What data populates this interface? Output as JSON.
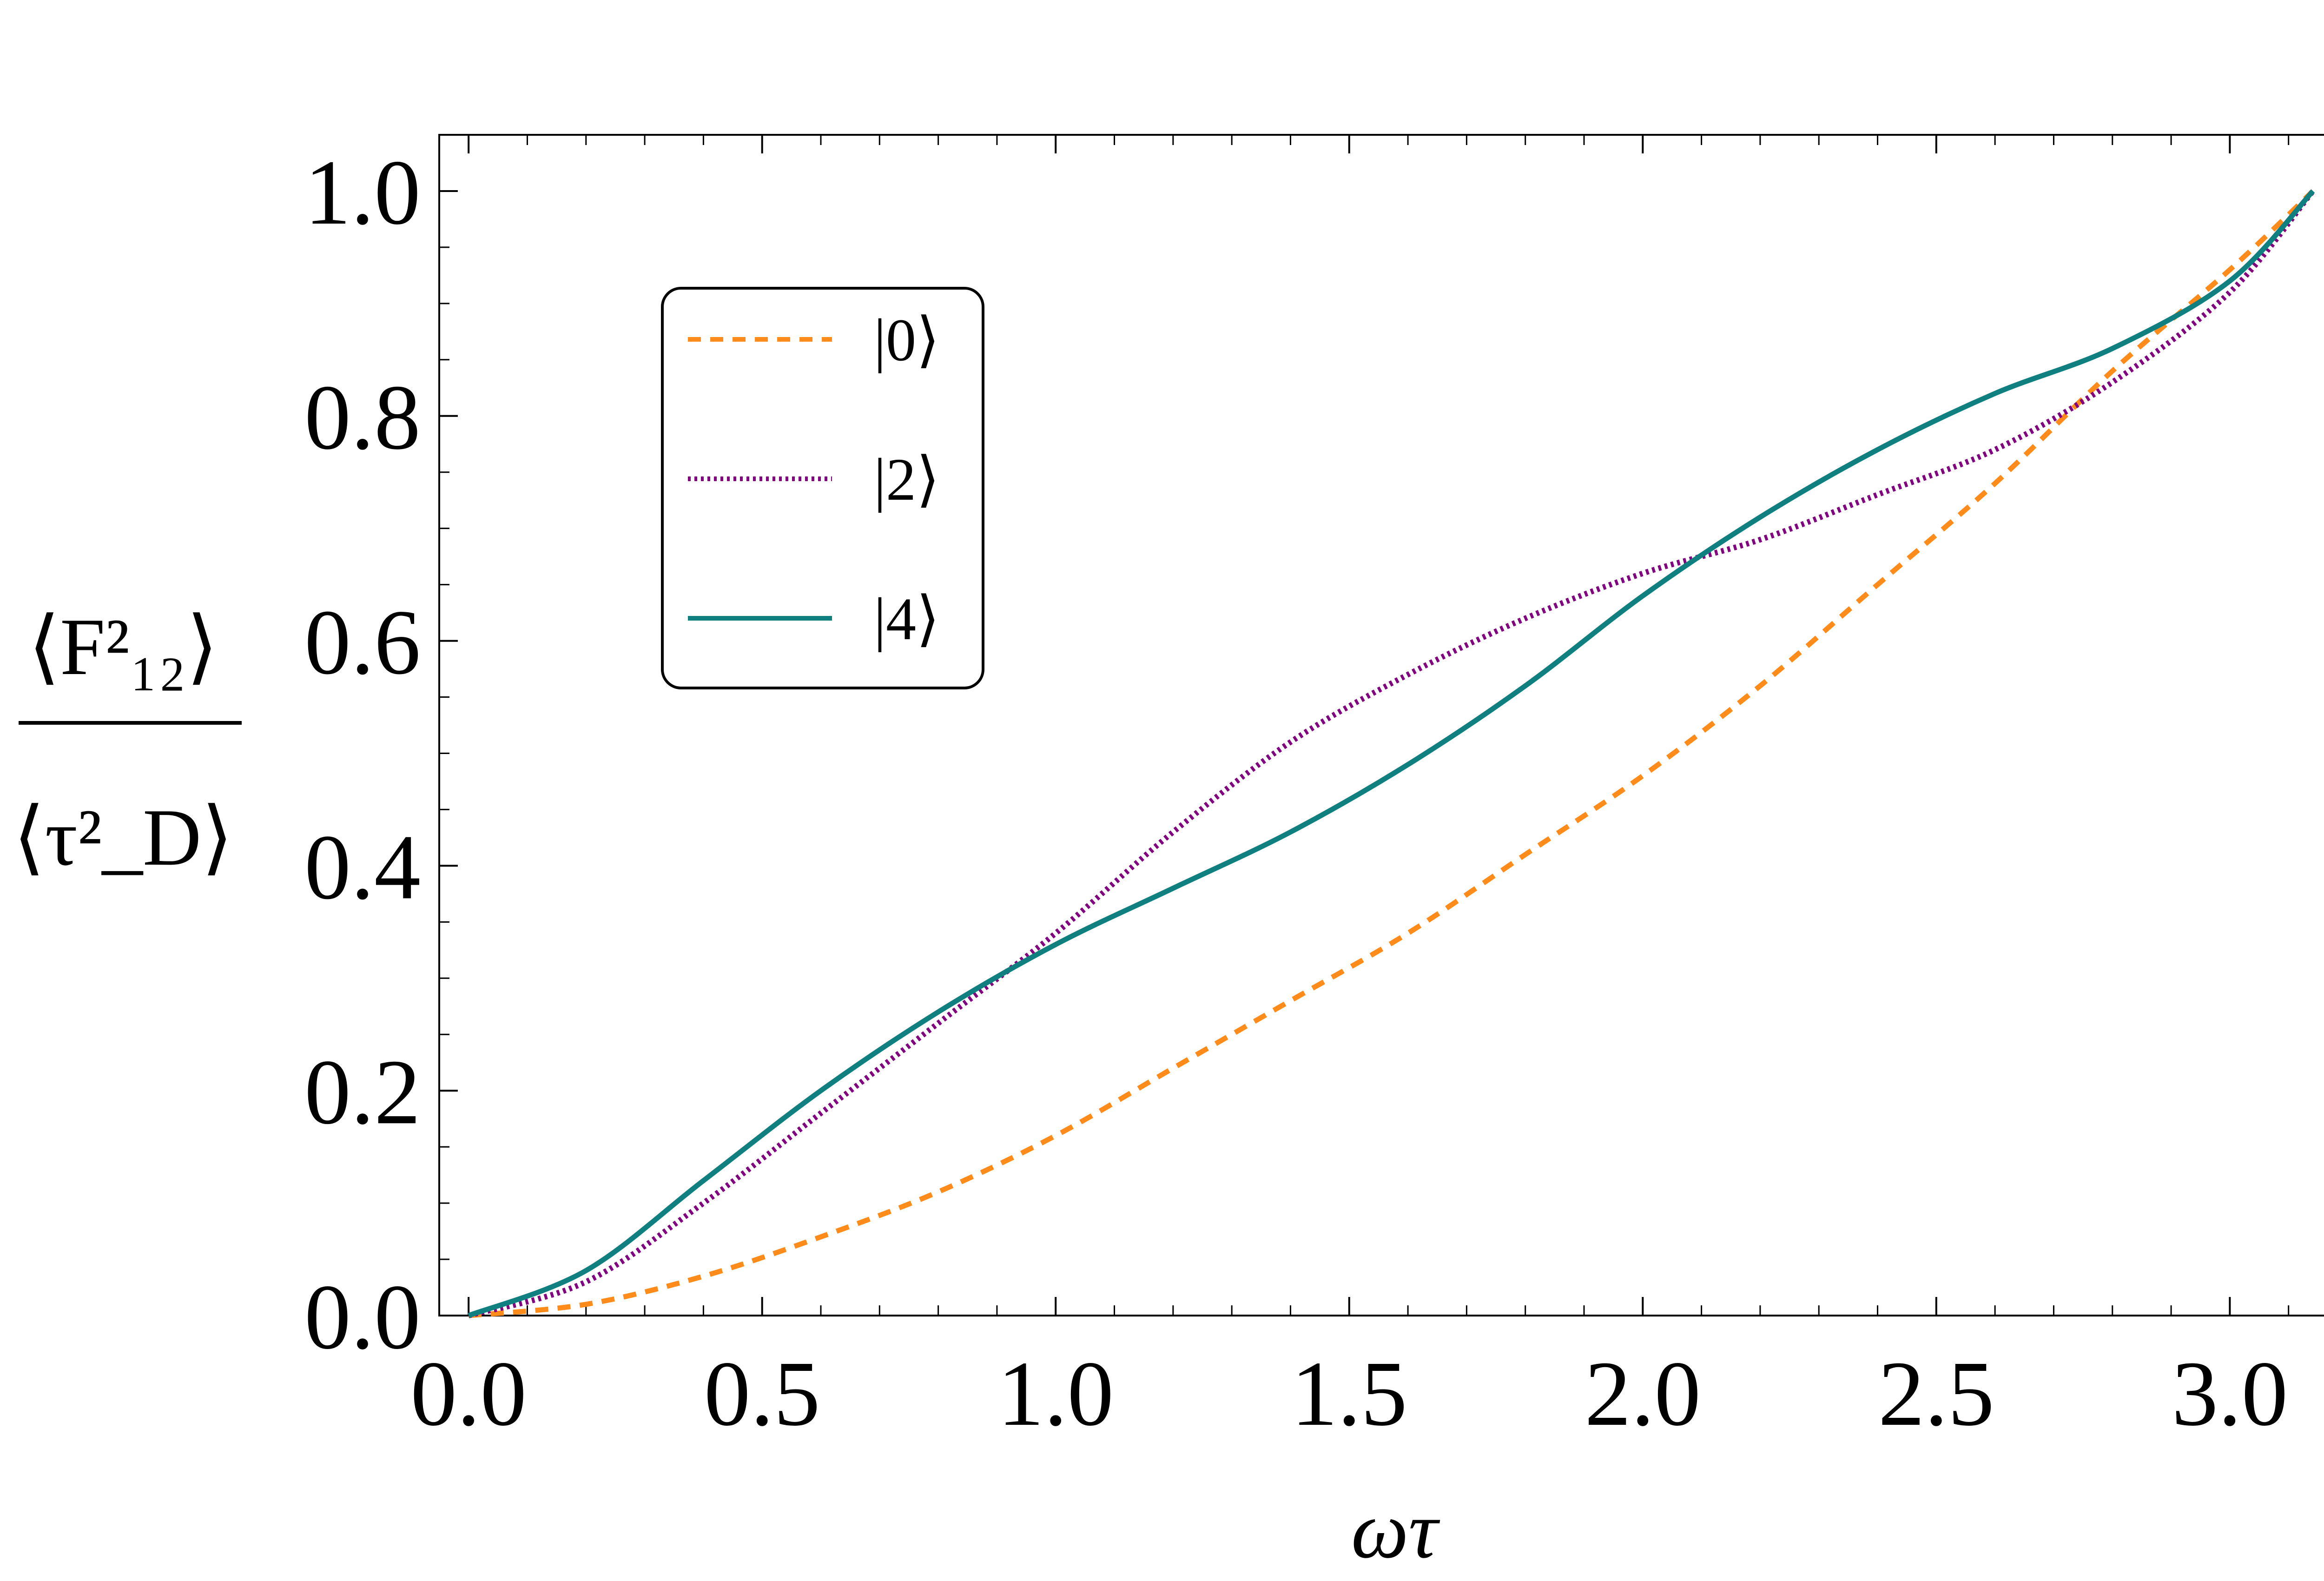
{
  "colors": {
    "n0": "#ff8c1a",
    "n2": "#800080",
    "n4": "#0f7f7f",
    "axis": "#000000"
  },
  "chart_data": {
    "type": "line",
    "xlabel": "ωτ",
    "ylabel": {
      "numerator": "⟨F²₁₂⟩",
      "denominator": "⟨τ²_D⟩"
    },
    "xlim": [
      -0.05,
      3.2
    ],
    "ylim": [
      0.0,
      1.05
    ],
    "xticks": [
      0.0,
      0.5,
      1.0,
      1.5,
      2.0,
      2.5,
      3.0
    ],
    "xtick_labels": [
      "0.0",
      "0.5",
      "1.0",
      "1.5",
      "2.0",
      "2.5",
      "3.0"
    ],
    "yticks": [
      0.0,
      0.2,
      0.4,
      0.6,
      0.8,
      1.0
    ],
    "ytick_labels": [
      "0.0",
      "0.2",
      "0.4",
      "0.6",
      "0.8",
      "1.0"
    ],
    "legend_position": "upper-left",
    "series": [
      {
        "name": "|0⟩",
        "style": "dashed",
        "color_key": "n0",
        "x": [
          0.0,
          0.2,
          0.4,
          0.6,
          0.8,
          1.0,
          1.2,
          1.4,
          1.6,
          1.8,
          2.0,
          2.2,
          2.4,
          2.6,
          2.8,
          3.0,
          3.1416
        ],
        "y": [
          0.0,
          0.01,
          0.035,
          0.07,
          0.11,
          0.16,
          0.22,
          0.28,
          0.34,
          0.41,
          0.48,
          0.56,
          0.65,
          0.74,
          0.84,
          0.93,
          1.0
        ]
      },
      {
        "name": "|2⟩",
        "style": "dotted",
        "color_key": "n2",
        "x": [
          0.0,
          0.2,
          0.4,
          0.6,
          0.8,
          1.0,
          1.2,
          1.4,
          1.6,
          1.8,
          2.0,
          2.2,
          2.4,
          2.6,
          2.8,
          3.0,
          3.1416
        ],
        "y": [
          0.0,
          0.03,
          0.1,
          0.18,
          0.26,
          0.34,
          0.43,
          0.51,
          0.57,
          0.62,
          0.66,
          0.69,
          0.73,
          0.77,
          0.83,
          0.91,
          1.0
        ]
      },
      {
        "name": "|4⟩",
        "style": "solid",
        "color_key": "n4",
        "x": [
          0.0,
          0.2,
          0.4,
          0.6,
          0.8,
          1.0,
          1.2,
          1.4,
          1.6,
          1.8,
          2.0,
          2.2,
          2.4,
          2.6,
          2.8,
          3.0,
          3.1416
        ],
        "y": [
          0.0,
          0.04,
          0.12,
          0.2,
          0.27,
          0.33,
          0.38,
          0.43,
          0.49,
          0.56,
          0.64,
          0.71,
          0.77,
          0.82,
          0.86,
          0.92,
          1.0
        ]
      }
    ]
  }
}
